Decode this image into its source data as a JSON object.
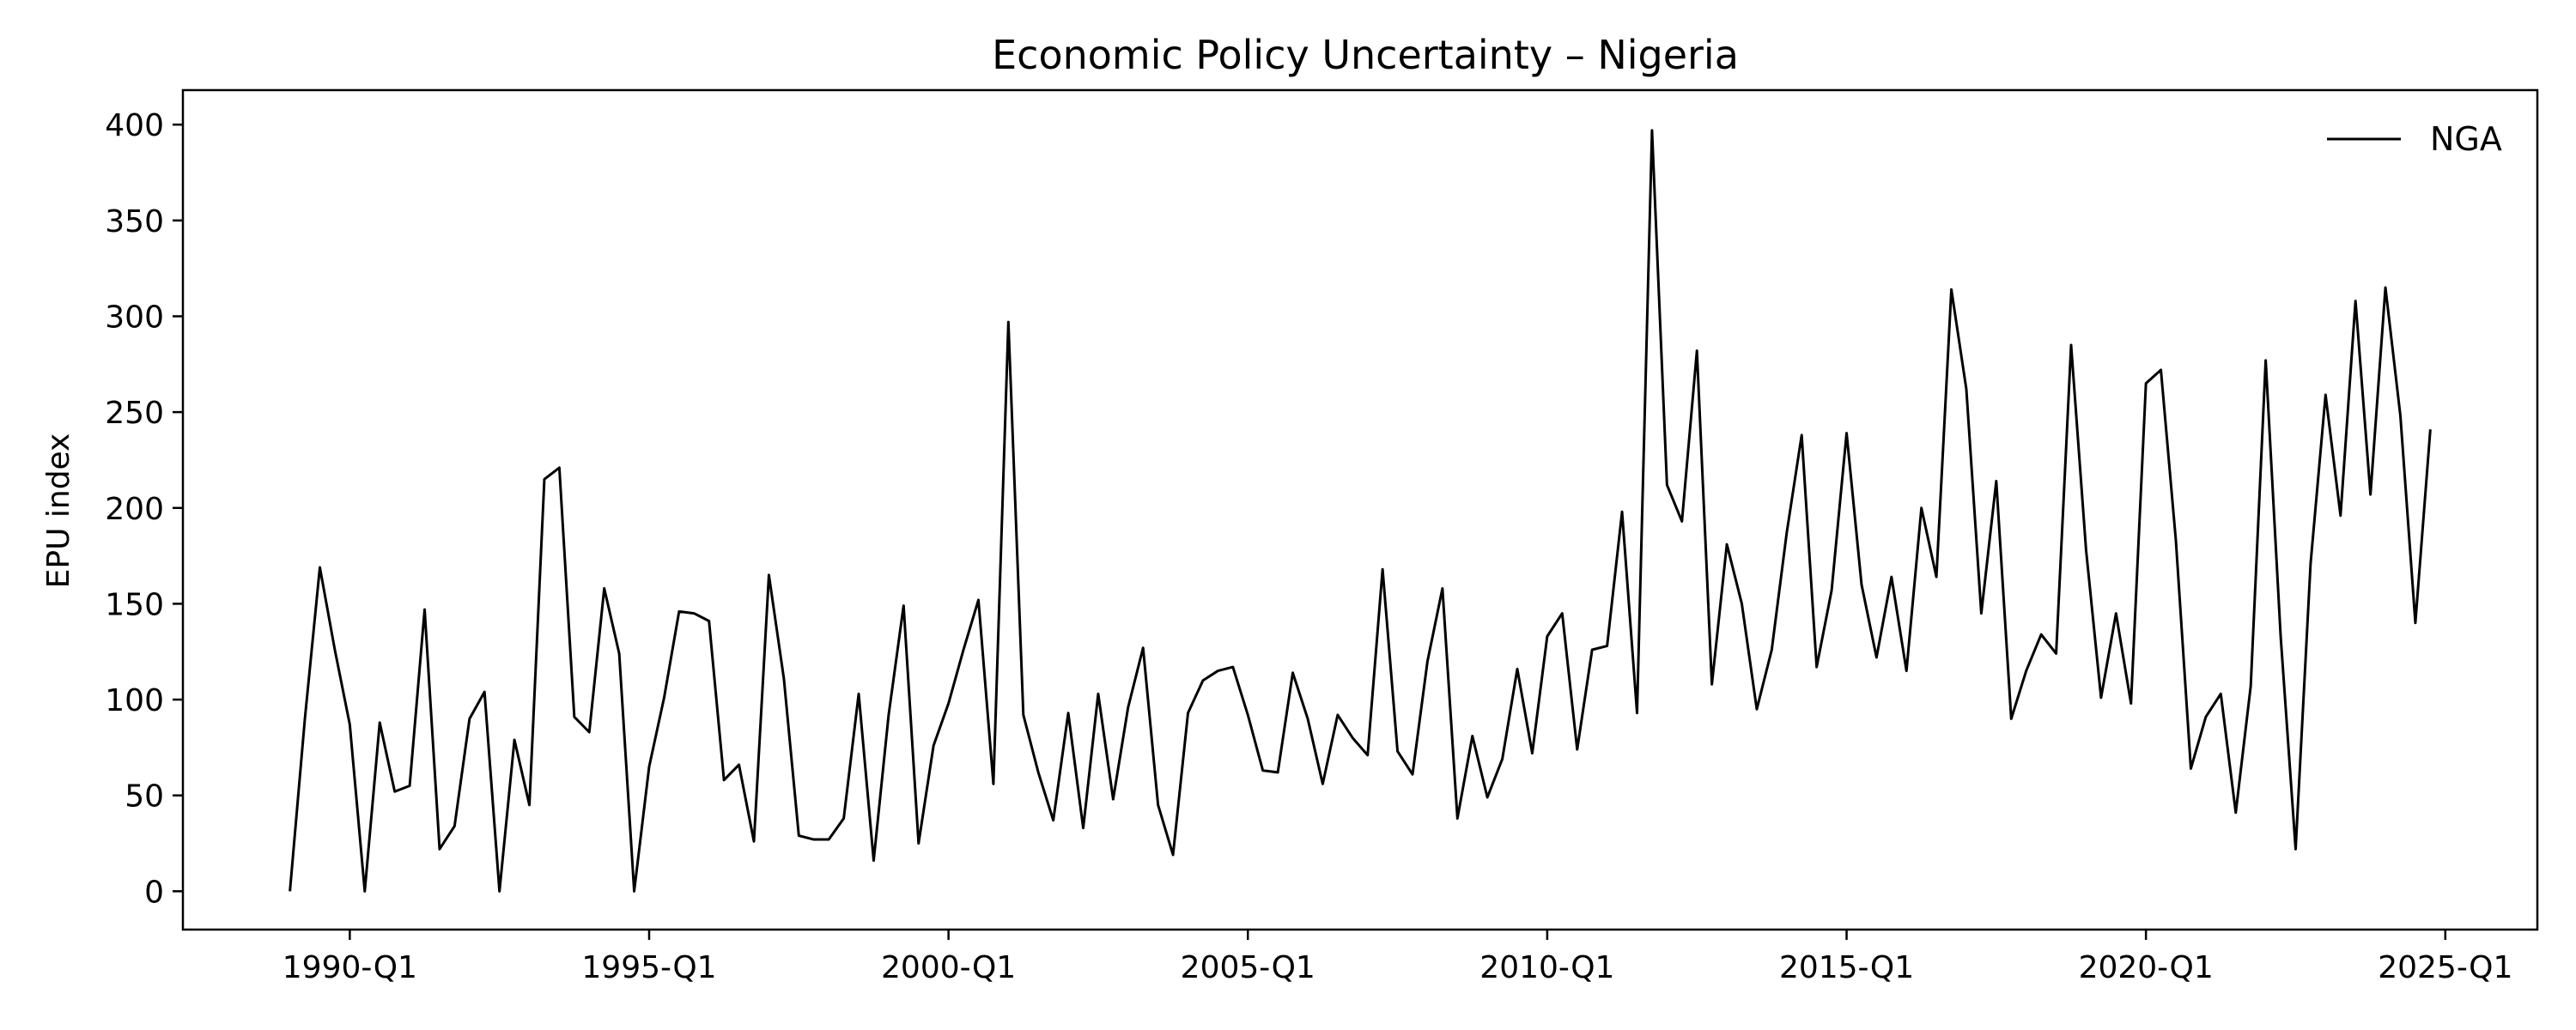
{
  "chart_data": {
    "type": "line",
    "title": "Economic Policy Uncertainty – Nigeria",
    "xlabel": "",
    "ylabel": "EPU index",
    "x_start": "1989-Q1",
    "x_tick_labels": [
      "1990-Q1",
      "1995-Q1",
      "2000-Q1",
      "2005-Q1",
      "2010-Q1",
      "2015-Q1",
      "2020-Q1",
      "2025-Q1"
    ],
    "y_ticks": [
      0,
      50,
      100,
      150,
      200,
      250,
      300,
      350,
      400
    ],
    "ylim": [
      -20,
      418
    ],
    "legend_position": "top-right",
    "grid": false,
    "series": [
      {
        "name": "NGA",
        "color": "#000000",
        "values": [
          0,
          90,
          169,
          126,
          87,
          0,
          88,
          52,
          55,
          147,
          22,
          34,
          90,
          104,
          0,
          79,
          45,
          215,
          221,
          91,
          83,
          158,
          124,
          0,
          65,
          101,
          146,
          145,
          141,
          58,
          66,
          26,
          165,
          111,
          29,
          27,
          27,
          38,
          103,
          16,
          92,
          149,
          25,
          76,
          98,
          126,
          152,
          56,
          297,
          92,
          62,
          37,
          93,
          33,
          103,
          48,
          96,
          127,
          45,
          19,
          93,
          110,
          115,
          117,
          92,
          63,
          62,
          114,
          90,
          56,
          92,
          80,
          71,
          168,
          73,
          61,
          120,
          158,
          38,
          81,
          49,
          69,
          116,
          72,
          133,
          145,
          74,
          126,
          128,
          198,
          93,
          397,
          212,
          193,
          282,
          108,
          181,
          150,
          95,
          126,
          187,
          238,
          117,
          157,
          239,
          160,
          122,
          164,
          115,
          200,
          164,
          314,
          262,
          145,
          214,
          90,
          115,
          134,
          124,
          285,
          178,
          101,
          145,
          98,
          265,
          272,
          183,
          64,
          91,
          103,
          41,
          107,
          277,
          133,
          22,
          171,
          259,
          196,
          308,
          207,
          315,
          248,
          140,
          241
        ]
      }
    ]
  }
}
